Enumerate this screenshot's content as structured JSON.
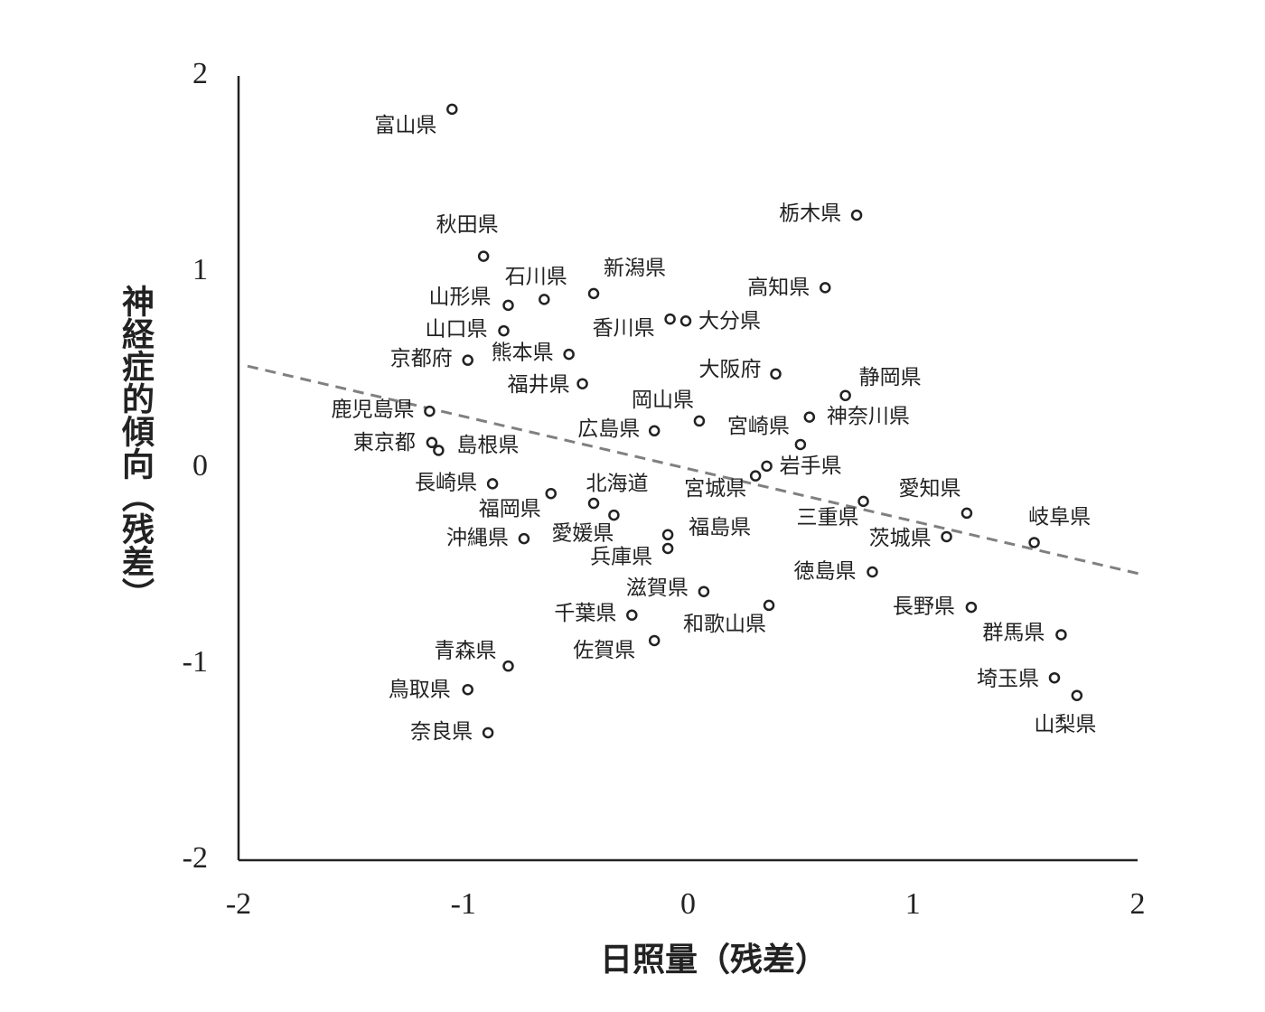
{
  "chart_data": {
    "type": "scatter",
    "xlabel": "日照量（残差）",
    "ylabel": "神経症的傾向（残差）",
    "xlim": [
      -2,
      2
    ],
    "xticks": [
      -2,
      -1,
      0,
      1,
      2
    ],
    "ylim": [
      -2,
      2
    ],
    "yticks": [
      -2,
      -1,
      0,
      1,
      2
    ],
    "labels": [
      "富山県",
      "栃木県",
      "秋田県",
      "新潟県",
      "石川県",
      "山形県",
      "高知県",
      "香川県",
      "大分県",
      "山口県",
      "熊本県",
      "京都府",
      "大阪府",
      "福井県",
      "静岡県",
      "鹿児島県",
      "岡山県",
      "神奈川県",
      "広島県",
      "東京都",
      "島根県",
      "宮崎県",
      "岩手県",
      "宮城県",
      "長崎県",
      "北海道",
      "福岡県",
      "愛知県",
      "三重県",
      "愛媛県",
      "沖縄県",
      "福島県",
      "兵庫県",
      "岐阜県",
      "茨城県",
      "徳島県",
      "滋賀県",
      "和歌山県",
      "長野県",
      "千葉県",
      "群馬県",
      "佐賀県",
      "青森県",
      "埼玉県",
      "鳥取県",
      "山梨県",
      "奈良県"
    ],
    "x": [
      -1.05,
      0.75,
      -0.91,
      -0.42,
      -0.64,
      -0.8,
      0.61,
      -0.08,
      -0.01,
      -0.82,
      -0.53,
      -0.98,
      0.39,
      -0.47,
      0.7,
      -1.15,
      0.05,
      0.54,
      -0.15,
      -1.14,
      -1.11,
      0.5,
      0.35,
      0.3,
      -0.87,
      -0.42,
      -0.61,
      1.24,
      0.78,
      -0.33,
      -0.73,
      -0.09,
      -0.09,
      1.54,
      1.15,
      0.82,
      0.07,
      0.36,
      1.26,
      -0.25,
      1.66,
      -0.15,
      -0.8,
      1.63,
      -0.98,
      1.73,
      -0.89
    ],
    "y": [
      1.83,
      1.29,
      1.08,
      0.89,
      0.86,
      0.83,
      0.92,
      0.76,
      0.75,
      0.7,
      0.58,
      0.55,
      0.48,
      0.43,
      0.37,
      0.29,
      0.24,
      0.26,
      0.19,
      0.13,
      0.09,
      0.12,
      0.01,
      -0.04,
      -0.08,
      -0.18,
      -0.13,
      -0.23,
      -0.17,
      -0.24,
      -0.36,
      -0.34,
      -0.41,
      -0.38,
      -0.35,
      -0.53,
      -0.63,
      -0.7,
      -0.71,
      -0.75,
      -0.85,
      -0.88,
      -1.01,
      -1.07,
      -1.13,
      -1.16,
      -1.35
    ],
    "color": "#222222",
    "trendline": {
      "x": [
        -1.96,
        2.01
      ],
      "y": [
        0.52,
        -0.54
      ],
      "color": "#808080"
    }
  }
}
